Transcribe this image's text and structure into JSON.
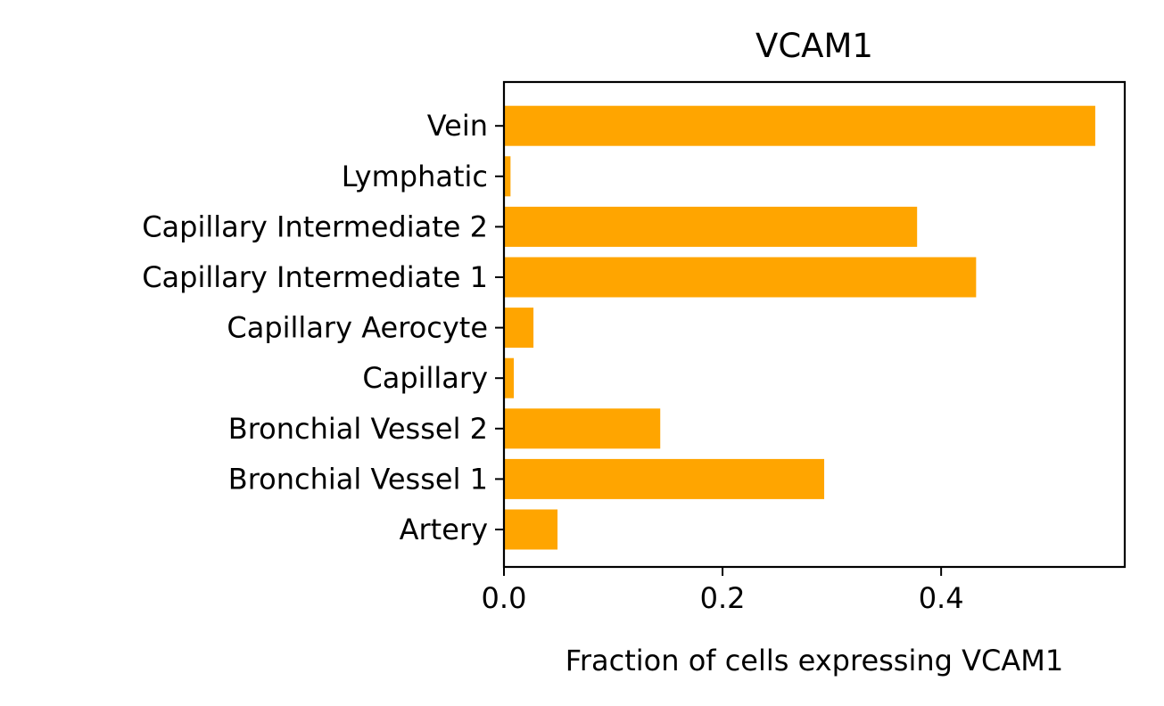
{
  "chart_data": {
    "type": "bar",
    "orientation": "horizontal",
    "title": "VCAM1",
    "xlabel": "Fraction of cells expressing VCAM1",
    "ylabel": "",
    "categories": [
      "Artery",
      "Bronchial Vessel 1",
      "Bronchial Vessel 2",
      "Capillary",
      "Capillary Aerocyte",
      "Capillary Intermediate 1",
      "Capillary Intermediate 2",
      "Lymphatic",
      "Vein"
    ],
    "values": [
      0.049,
      0.293,
      0.143,
      0.009,
      0.027,
      0.432,
      0.378,
      0.006,
      0.541
    ],
    "xlim": [
      0,
      0.568
    ],
    "xticks": [
      0.0,
      0.2,
      0.4
    ],
    "xtick_labels": [
      "0.0",
      "0.2",
      "0.4"
    ],
    "bar_color": "#ffa500",
    "grid": false,
    "legend": "none"
  }
}
